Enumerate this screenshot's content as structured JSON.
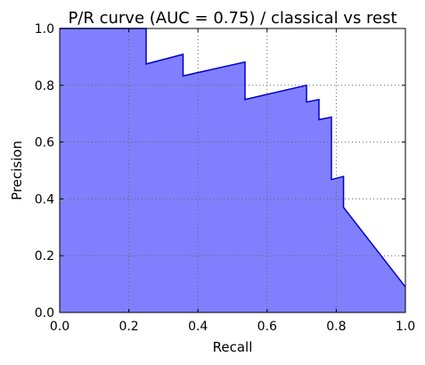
{
  "chart_data": {
    "type": "area",
    "title": "P/R curve (AUC = 0.75) / classical vs rest",
    "xlabel": "Recall",
    "ylabel": "Precision",
    "xlim": [
      0.0,
      1.0
    ],
    "ylim": [
      0.0,
      1.0
    ],
    "x_ticks": [
      0.0,
      0.2,
      0.4,
      0.6,
      0.8,
      1.0
    ],
    "y_ticks": [
      0.0,
      0.2,
      0.4,
      0.6,
      0.8,
      1.0
    ],
    "x_tick_labels": [
      "0.0",
      "0.2",
      "0.4",
      "0.6",
      "0.8",
      "1.0"
    ],
    "y_tick_labels": [
      "0.0",
      "0.2",
      "0.4",
      "0.6",
      "0.8",
      "1.0"
    ],
    "grid": true,
    "legend": "none",
    "series": [
      {
        "recall": [
          0.0,
          0.25,
          0.25,
          0.357,
          0.357,
          0.536,
          0.536,
          0.714,
          0.714,
          0.75,
          0.75,
          0.786,
          0.786,
          0.821,
          0.821,
          1.0
        ],
        "precision": [
          1.0,
          1.0,
          0.875,
          0.909,
          0.833,
          0.882,
          0.75,
          0.8,
          0.741,
          0.75,
          0.679,
          0.688,
          0.468,
          0.479,
          0.37,
          0.09
        ],
        "fill_color": "#8080ff",
        "line_color": "#0000cc"
      }
    ],
    "colors": {
      "fill": "#8080ff",
      "line": "#0000cc",
      "grid": "#666666",
      "frame": "#000000"
    }
  }
}
